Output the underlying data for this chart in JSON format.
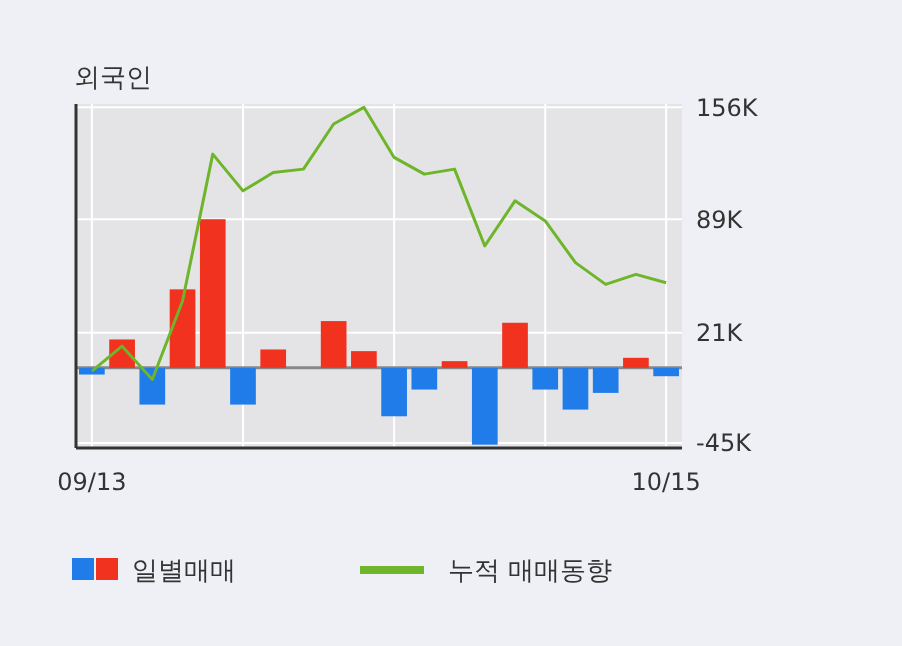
{
  "chart_data": {
    "type": "bar",
    "title": "외국인",
    "categories": [
      "09/13",
      null,
      null,
      null,
      null,
      null,
      null,
      null,
      null,
      null,
      null,
      null,
      null,
      null,
      null,
      null,
      null,
      null,
      null,
      "10/15"
    ],
    "series": [
      {
        "name": "일별매매",
        "colors": [
          "#1f7ce8",
          "#f0321e",
          "#1f7ce8",
          "#f0321e",
          "#f0321e",
          "#1f7ce8",
          "#f0321e",
          "#f0321e",
          "#f0321e",
          "#f0321e",
          "#1f7ce8",
          "#1f7ce8",
          "#f0321e",
          "#1f7ce8",
          "#f0321e",
          "#1f7ce8",
          "#1f7ce8",
          "#1f7ce8",
          "#f0321e",
          "#1f7ce8"
        ],
        "values": [
          -4000,
          17000,
          -22000,
          47000,
          89000,
          -22000,
          11000,
          0,
          28000,
          10000,
          -29000,
          -13000,
          4000,
          -46000,
          27000,
          -13000,
          -25000,
          -15000,
          6000,
          -5000
        ]
      },
      {
        "name": "누적 매매동향",
        "type": "line",
        "color": "#6fb52c",
        "values": [
          -2000,
          13000,
          -7000,
          40000,
          128000,
          106000,
          117000,
          119000,
          146000,
          156000,
          126000,
          116000,
          119000,
          73000,
          100000,
          88000,
          63000,
          50000,
          56000,
          51000
        ]
      }
    ],
    "ylim": [
      -48000,
      158000
    ],
    "yticks": [
      {
        "value": 156000,
        "label": "156K"
      },
      {
        "value": 89000,
        "label": "89K"
      },
      {
        "value": 21000,
        "label": "21K"
      },
      {
        "value": -45000,
        "label": "-45K"
      }
    ],
    "grid": true,
    "legend": "bottom"
  }
}
